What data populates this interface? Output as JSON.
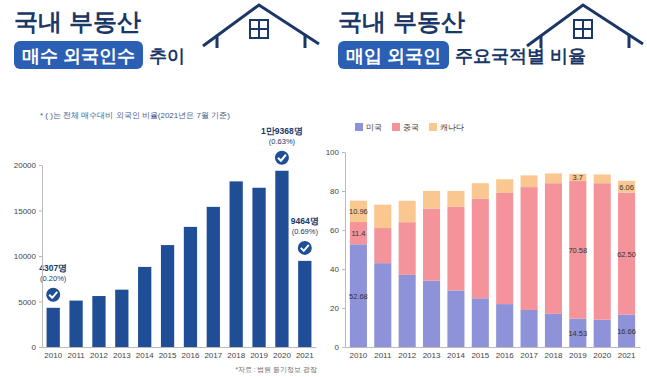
{
  "chart_data": [
    {
      "type": "bar",
      "title": "국내 부동산",
      "headline": {
        "highlight": "매수 외국인수",
        "text": "추이"
      },
      "note": "* ( )는 전체 매수대비 외국인 비율(2021년은 7월 기준)",
      "source": "*자료 : 법원 등기정보 광장",
      "categories": [
        "2010",
        "2011",
        "2012",
        "2013",
        "2014",
        "2015",
        "2016",
        "2017",
        "2018",
        "2019",
        "2020",
        "2021"
      ],
      "values": [
        4307,
        5100,
        5600,
        6300,
        8800,
        11200,
        13200,
        15400,
        18200,
        17500,
        19368,
        9464
      ],
      "value_labels": [
        "4307명",
        null,
        null,
        null,
        null,
        null,
        null,
        null,
        null,
        null,
        "1만9368명",
        "9464명"
      ],
      "share_labels": [
        "(0.20%)",
        null,
        null,
        null,
        null,
        null,
        null,
        null,
        null,
        null,
        "(0.63%)",
        "(0.69%)"
      ],
      "color": "#1f4e96",
      "ylim": [
        0,
        20000
      ],
      "yticks": [
        0,
        5000,
        10000,
        15000,
        20000
      ],
      "grid": false
    },
    {
      "type": "bar",
      "stacked": true,
      "title": "국내 부동산",
      "headline": {
        "highlight": "매입 외국인",
        "text": "주요국적별 비율"
      },
      "categories": [
        "2010",
        "2011",
        "2012",
        "2013",
        "2014",
        "2015",
        "2016",
        "2017",
        "2018",
        "2019",
        "2020",
        "2021"
      ],
      "series": [
        {
          "name": "미국",
          "color": "#8e92d8",
          "values": [
            52.68,
            43,
            37,
            34,
            29,
            25,
            22,
            19,
            17,
            14.53,
            14,
            16.66
          ],
          "value_labels": [
            "52.68",
            null,
            null,
            null,
            null,
            null,
            null,
            null,
            null,
            "14.53",
            null,
            "16.66"
          ]
        },
        {
          "name": "중국",
          "color": "#f5939a",
          "values": [
            11.4,
            18,
            27,
            37,
            43,
            51,
            57,
            63,
            67,
            70.58,
            70,
            62.5
          ],
          "value_labels": [
            "11.4",
            null,
            null,
            null,
            null,
            null,
            null,
            null,
            null,
            "70.58",
            null,
            "62.50"
          ]
        },
        {
          "name": "캐나다",
          "color": "#f9c78f",
          "values": [
            10.96,
            12,
            11,
            9,
            8,
            8,
            7,
            6,
            5,
            3.7,
            4.5,
            6.06
          ],
          "value_labels": [
            "10.96",
            null,
            null,
            null,
            null,
            null,
            null,
            null,
            null,
            "3.7",
            null,
            "6.06"
          ]
        }
      ],
      "ylim": [
        0,
        100
      ],
      "yticks": [
        0,
        20,
        40,
        60,
        80,
        100
      ],
      "grid": false,
      "legend": "top-left"
    }
  ]
}
